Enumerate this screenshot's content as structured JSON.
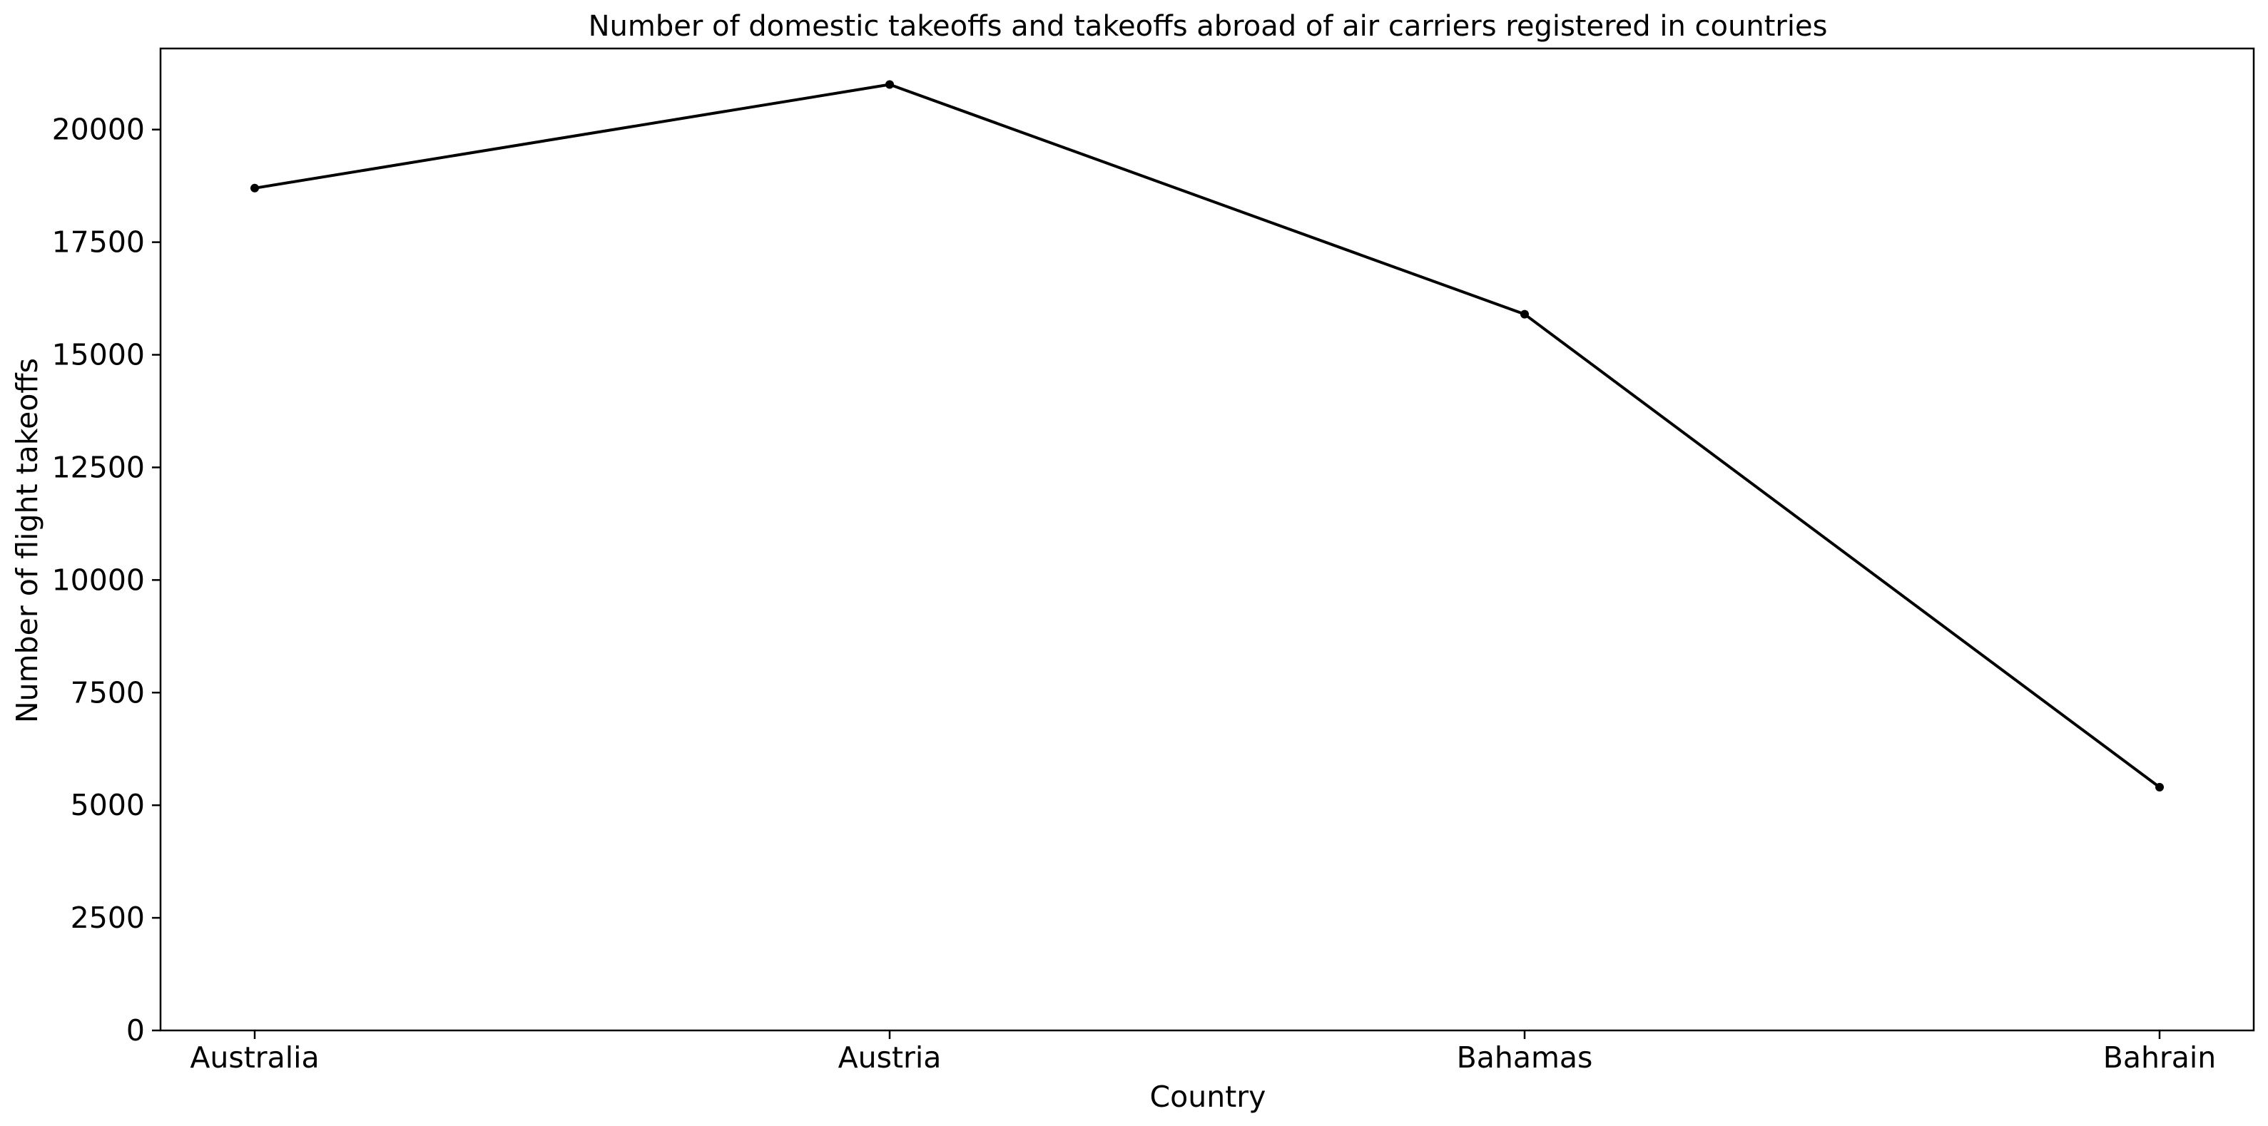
{
  "chart_data": {
    "type": "line",
    "title": "Number of domestic takeoffs and takeoffs abroad of air carriers registered in countries",
    "xlabel": "Country",
    "ylabel": "Number of flight takeoffs",
    "categories": [
      "Australia",
      "Austria",
      "Bahamas",
      "Bahrain"
    ],
    "series": [
      {
        "values": [
          18700,
          21000,
          15900,
          5400
        ],
        "color": "#000000"
      }
    ],
    "ylim": [
      0,
      21800
    ],
    "yticks": [
      0,
      2500,
      5000,
      7500,
      10000,
      12500,
      15000,
      17500,
      20000
    ],
    "ytick_labels": [
      "0",
      "2500",
      "5000",
      "7500",
      "10000",
      "12500",
      "15000",
      "17500",
      "20000"
    ],
    "grid": false,
    "legend": "none"
  }
}
